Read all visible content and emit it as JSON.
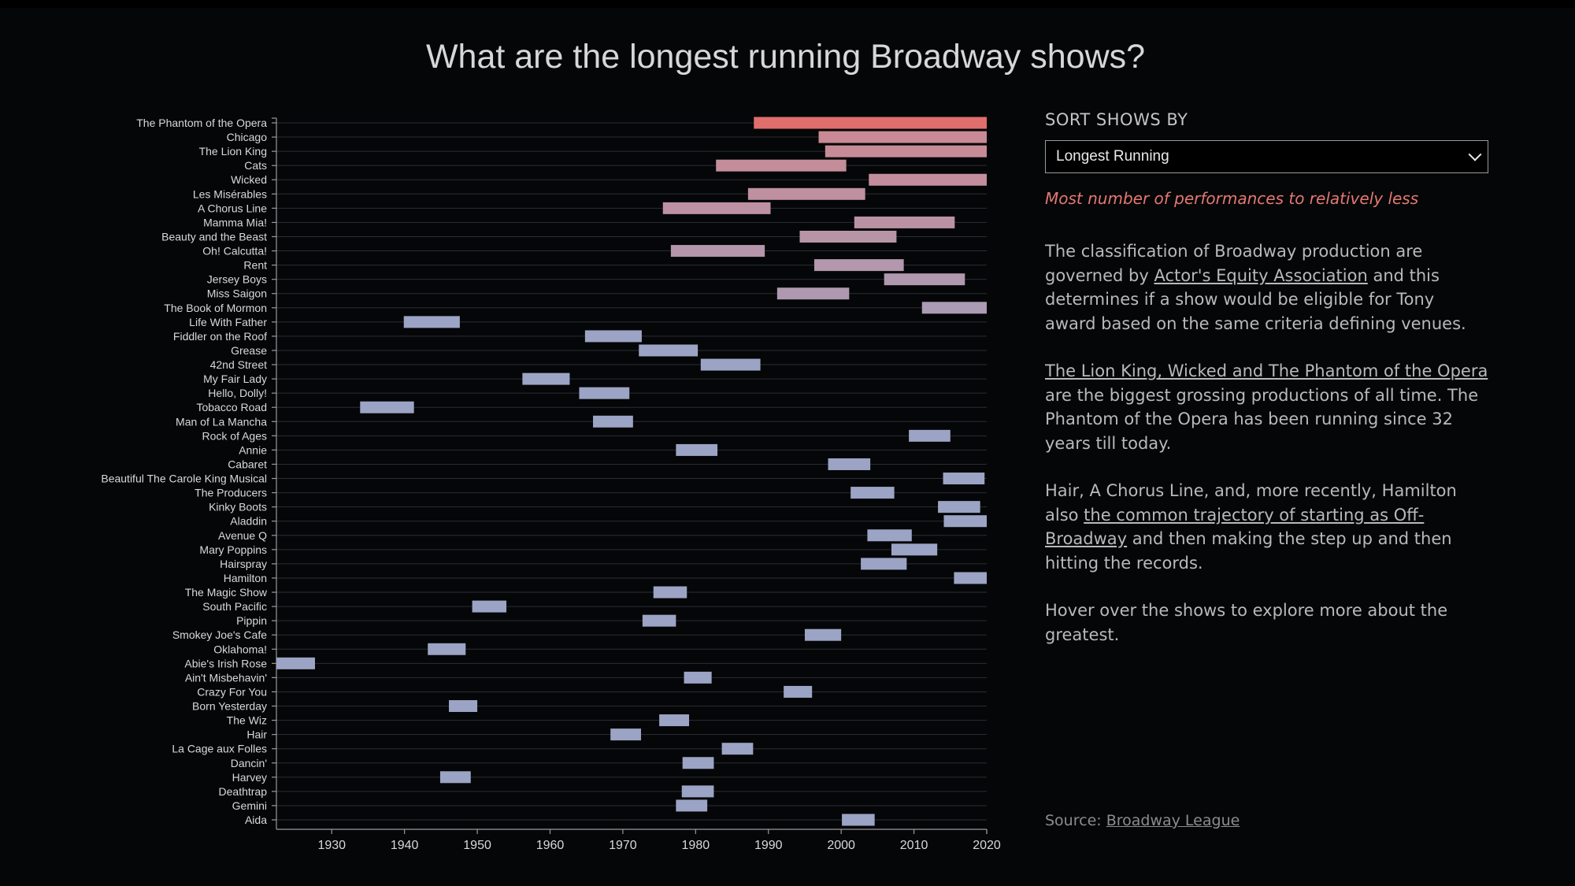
{
  "title": "What are the longest running Broadway shows?",
  "sidebar": {
    "sort_label": "SORT SHOWS BY",
    "sort_selected": "Longest Running",
    "sort_description": "Most number of performances to relatively less",
    "p1_text1": "The classification of Broadway production are governed by ",
    "p1_link": "Actor's Equity Association",
    "p1_text2": " and this determines if a show would be eligible for Tony award based on the same criteria defining venues.",
    "p2_link": "The Lion King, Wicked and The Phantom of the Opera",
    "p2_text": " are the biggest grossing productions of all time. The Phantom of the Opera has been running since 32 years till today.",
    "p3_text1": "Hair, A Chorus Line, and, more recently, Hamilton also ",
    "p3_link": "the common trajectory of starting as Off-Broadway",
    "p3_text2": " and then making the step up and then hitting the records.",
    "p4_text": "Hover over the shows to explore more about the greatest.",
    "source_label": "Source: ",
    "source_link": "Broadway League"
  },
  "colors": {
    "top_bar": "#e06e6d",
    "accent_pink": "#c98a95",
    "base_bar": "#9ba4c4",
    "background": "#050608"
  },
  "chart_data": {
    "type": "bar",
    "orientation": "horizontal-range",
    "x_ticks": [
      1930,
      1940,
      1950,
      1960,
      1970,
      1980,
      1990,
      2000,
      2010,
      2020
    ],
    "xlim": [
      1922.4,
      2020
    ],
    "shows": [
      {
        "name": "The Phantom of the Opera",
        "start": 1988.0,
        "end": 2020.0
      },
      {
        "name": "Chicago",
        "start": 1996.9,
        "end": 2020.0
      },
      {
        "name": "The Lion King",
        "start": 1997.8,
        "end": 2020.0
      },
      {
        "name": "Cats",
        "start": 1982.8,
        "end": 2000.7
      },
      {
        "name": "Wicked",
        "start": 2003.8,
        "end": 2020.0
      },
      {
        "name": "Les Misérables",
        "start": 1987.2,
        "end": 2003.3
      },
      {
        "name": "A Chorus Line",
        "start": 1975.5,
        "end": 1990.3
      },
      {
        "name": "Mamma Mia!",
        "start": 2001.8,
        "end": 2015.6
      },
      {
        "name": "Beauty and the Beast",
        "start": 1994.3,
        "end": 2007.6
      },
      {
        "name": "Oh! Calcutta!",
        "start": 1976.6,
        "end": 1989.5
      },
      {
        "name": "Rent",
        "start": 1996.3,
        "end": 2008.6
      },
      {
        "name": "Jersey Boys",
        "start": 2005.9,
        "end": 2017.0
      },
      {
        "name": "Miss Saigon",
        "start": 1991.2,
        "end": 2001.1
      },
      {
        "name": "The Book of Mormon",
        "start": 2011.1,
        "end": 2020.0
      },
      {
        "name": "Life With Father",
        "start": 1939.9,
        "end": 1947.6
      },
      {
        "name": "Fiddler on the Roof",
        "start": 1964.8,
        "end": 1972.6
      },
      {
        "name": "Grease",
        "start": 1972.2,
        "end": 1980.3
      },
      {
        "name": "42nd Street",
        "start": 1980.7,
        "end": 1988.9
      },
      {
        "name": "My Fair Lady",
        "start": 1956.2,
        "end": 1962.7
      },
      {
        "name": "Hello, Dolly!",
        "start": 1964.0,
        "end": 1970.9
      },
      {
        "name": "Tobacco Road",
        "start": 1933.9,
        "end": 1941.3
      },
      {
        "name": "Man of La Mancha",
        "start": 1965.9,
        "end": 1971.4
      },
      {
        "name": "Rock of Ages",
        "start": 2009.3,
        "end": 2015.0
      },
      {
        "name": "Annie",
        "start": 1977.3,
        "end": 1983.0
      },
      {
        "name": "Cabaret",
        "start": 1998.2,
        "end": 2004.0
      },
      {
        "name": "Beautiful The Carole King Musical",
        "start": 2014.0,
        "end": 2019.7
      },
      {
        "name": "The Producers",
        "start": 2001.3,
        "end": 2007.3
      },
      {
        "name": "Kinky Boots",
        "start": 2013.3,
        "end": 2019.1
      },
      {
        "name": "Aladdin",
        "start": 2014.1,
        "end": 2020.0
      },
      {
        "name": "Avenue Q",
        "start": 2003.6,
        "end": 2009.7
      },
      {
        "name": "Mary Poppins",
        "start": 2006.9,
        "end": 2013.2
      },
      {
        "name": "Hairspray",
        "start": 2002.7,
        "end": 2009.0
      },
      {
        "name": "Hamilton",
        "start": 2015.5,
        "end": 2020.0
      },
      {
        "name": "The Magic Show",
        "start": 1974.2,
        "end": 1978.8
      },
      {
        "name": "South Pacific",
        "start": 1949.3,
        "end": 1954.0
      },
      {
        "name": "Pippin",
        "start": 1972.7,
        "end": 1977.3
      },
      {
        "name": "Smokey Joe's Cafe",
        "start": 1995.0,
        "end": 2000.0
      },
      {
        "name": "Oklahoma!",
        "start": 1943.2,
        "end": 1948.4
      },
      {
        "name": "Abie's Irish Rose",
        "start": 1922.4,
        "end": 1927.7
      },
      {
        "name": "Ain't Misbehavin'",
        "start": 1978.4,
        "end": 1982.2
      },
      {
        "name": "Crazy For You",
        "start": 1992.1,
        "end": 1996.0
      },
      {
        "name": "Born Yesterday",
        "start": 1946.1,
        "end": 1950.0
      },
      {
        "name": "The Wiz",
        "start": 1975.0,
        "end": 1979.1
      },
      {
        "name": "Hair",
        "start": 1968.3,
        "end": 1972.5
      },
      {
        "name": "La Cage aux Folles",
        "start": 1983.6,
        "end": 1987.9
      },
      {
        "name": "Dancin'",
        "start": 1978.2,
        "end": 1982.5
      },
      {
        "name": "Harvey",
        "start": 1944.9,
        "end": 1949.1
      },
      {
        "name": "Deathtrap",
        "start": 1978.1,
        "end": 1982.5
      },
      {
        "name": "Gemini",
        "start": 1977.3,
        "end": 1981.6
      },
      {
        "name": "Aida",
        "start": 2000.1,
        "end": 2004.6
      }
    ]
  }
}
